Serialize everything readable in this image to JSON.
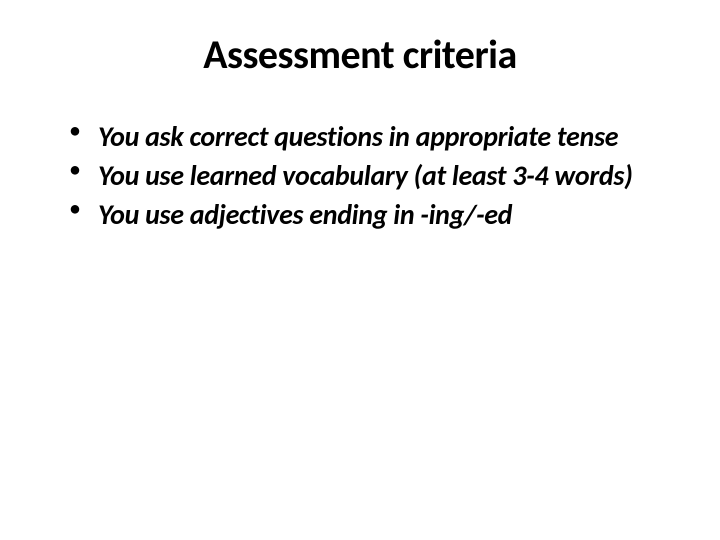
{
  "slide": {
    "title": "Assessment criteria",
    "bullets": [
      "You  ask correct questions in appropriate tense",
      "You use learned vocabulary (at least 3-4 words)",
      "You use adjectives ending in -ing/-ed"
    ],
    "styling": {
      "background_color": "#ffffff",
      "text_color": "#000000",
      "title_fontsize": 40,
      "title_weight": "bold",
      "bullet_fontsize": 28,
      "bullet_weight": "bold",
      "bullet_style": "italic",
      "font_family": "Calibri"
    }
  }
}
